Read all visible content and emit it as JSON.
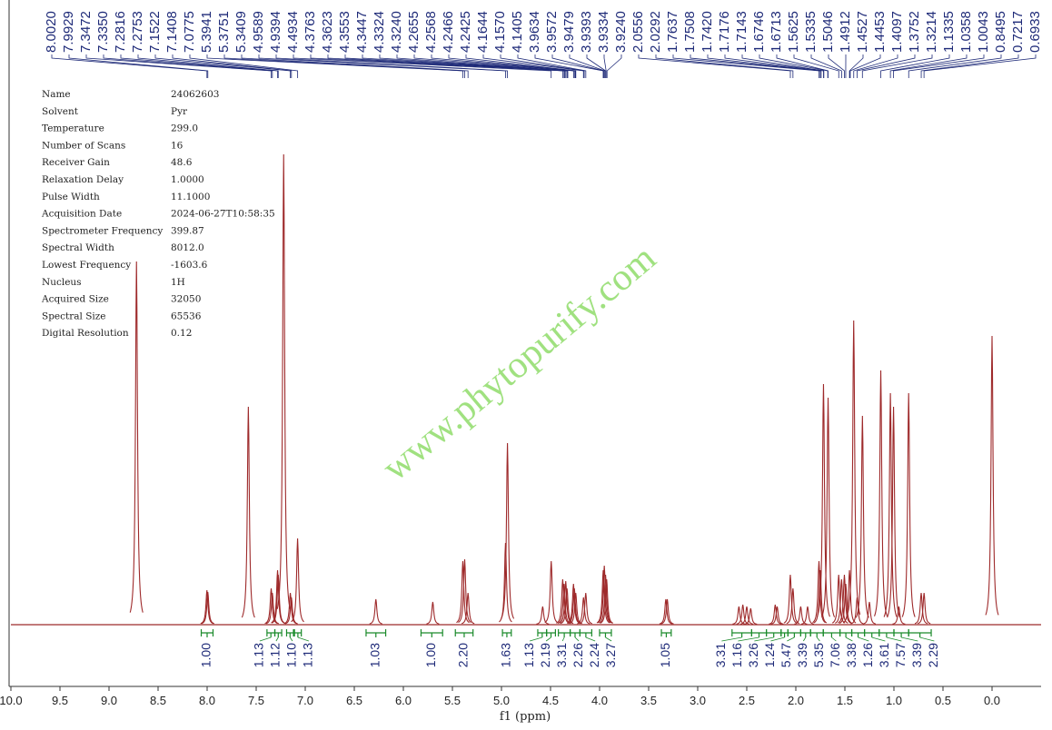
{
  "chart_data": {
    "type": "nmr",
    "xlabel": "f1 (ppm)",
    "xlim": [
      10.0,
      -0.5
    ],
    "ylim": [
      0,
      530
    ],
    "xticks": [
      {
        "value": 10.0,
        "label": "10.0"
      },
      {
        "value": 9.5,
        "label": "9.5"
      },
      {
        "value": 9.0,
        "label": "9.0"
      },
      {
        "value": 8.5,
        "label": "8.5"
      },
      {
        "value": 8.0,
        "label": "8.0"
      },
      {
        "value": 7.5,
        "label": "7.5"
      },
      {
        "value": 7.0,
        "label": "7.0"
      },
      {
        "value": 6.5,
        "label": "6.5"
      },
      {
        "value": 6.0,
        "label": "6.0"
      },
      {
        "value": 5.5,
        "label": "5.5"
      },
      {
        "value": 5.0,
        "label": "5.0"
      },
      {
        "value": 4.5,
        "label": "4.5"
      },
      {
        "value": 4.0,
        "label": "4.0"
      },
      {
        "value": 3.5,
        "label": "3.5"
      },
      {
        "value": 3.0,
        "label": "3.0"
      },
      {
        "value": 2.5,
        "label": "2.5"
      },
      {
        "value": 2.0,
        "label": "2.0"
      },
      {
        "value": 1.5,
        "label": "1.5"
      },
      {
        "value": 1.0,
        "label": "1.0"
      },
      {
        "value": 0.5,
        "label": "0.5"
      },
      {
        "value": 0.0,
        "label": "0.0"
      }
    ],
    "color": "#9e2a2b",
    "watermark": "www.phytopurify.com",
    "parameters": [
      [
        "Name",
        "24062603"
      ],
      [
        "Solvent",
        "Pyr"
      ],
      [
        "Temperature",
        "299.0"
      ],
      [
        "Number of Scans",
        "16"
      ],
      [
        "Receiver Gain",
        "48.6"
      ],
      [
        "Relaxation Delay",
        "1.0000"
      ],
      [
        "Pulse Width",
        "11.1000"
      ],
      [
        "Acquisition Date",
        "2024-06-27T10:58:35"
      ],
      [
        "Spectrometer Frequency",
        "399.87"
      ],
      [
        "Spectral Width",
        "8012.0"
      ],
      [
        "Lowest Frequency",
        "-1603.6"
      ],
      [
        "Nucleus",
        "1H"
      ],
      [
        "Acquired Size",
        "32050"
      ],
      [
        "Spectral Size",
        "65536"
      ],
      [
        "Digital Resolution",
        "0.12"
      ]
    ],
    "peak_labels": [
      {
        "value": 8.002,
        "label": "8.0020"
      },
      {
        "value": 7.9929,
        "label": "7.9929"
      },
      {
        "value": 7.3472,
        "label": "7.3472"
      },
      {
        "value": 7.335,
        "label": "7.3350"
      },
      {
        "value": 7.2816,
        "label": "7.2816"
      },
      {
        "value": 7.2753,
        "label": "7.2753"
      },
      {
        "value": 7.1522,
        "label": "7.1522"
      },
      {
        "value": 7.1408,
        "label": "7.1408"
      },
      {
        "value": 7.0775,
        "label": "7.0775"
      },
      {
        "value": 5.3941,
        "label": "5.3941"
      },
      {
        "value": 5.3751,
        "label": "5.3751"
      },
      {
        "value": 5.3409,
        "label": "5.3409"
      },
      {
        "value": 4.9589,
        "label": "4.9589"
      },
      {
        "value": 4.9394,
        "label": "4.9394"
      },
      {
        "value": 4.4934,
        "label": "4.4934"
      },
      {
        "value": 4.3763,
        "label": "4.3763"
      },
      {
        "value": 4.3623,
        "label": "4.3623"
      },
      {
        "value": 4.3553,
        "label": "4.3553"
      },
      {
        "value": 4.3447,
        "label": "4.3447"
      },
      {
        "value": 4.3324,
        "label": "4.3324"
      },
      {
        "value": 4.324,
        "label": "4.3240"
      },
      {
        "value": 4.2655,
        "label": "4.2655"
      },
      {
        "value": 4.2568,
        "label": "4.2568"
      },
      {
        "value": 4.2466,
        "label": "4.2466"
      },
      {
        "value": 4.2425,
        "label": "4.2425"
      },
      {
        "value": 4.1644,
        "label": "4.1644"
      },
      {
        "value": 4.157,
        "label": "4.1570"
      },
      {
        "value": 4.1405,
        "label": "4.1405"
      },
      {
        "value": 3.9634,
        "label": "3.9634"
      },
      {
        "value": 3.9572,
        "label": "3.9572"
      },
      {
        "value": 3.9479,
        "label": "3.9479"
      },
      {
        "value": 3.9393,
        "label": "3.9393"
      },
      {
        "value": 3.9334,
        "label": "3.9334"
      },
      {
        "value": 3.924,
        "label": "3.9240"
      },
      {
        "value": 2.0556,
        "label": "2.0556"
      },
      {
        "value": 2.0292,
        "label": "2.0292"
      },
      {
        "value": 1.7637,
        "label": "1.7637"
      },
      {
        "value": 1.7508,
        "label": "1.7508"
      },
      {
        "value": 1.742,
        "label": "1.7420"
      },
      {
        "value": 1.7176,
        "label": "1.7176"
      },
      {
        "value": 1.7143,
        "label": "1.7143"
      },
      {
        "value": 1.6746,
        "label": "1.6746"
      },
      {
        "value": 1.6713,
        "label": "1.6713"
      },
      {
        "value": 1.5625,
        "label": "1.5625"
      },
      {
        "value": 1.5335,
        "label": "1.5335"
      },
      {
        "value": 1.5046,
        "label": "1.5046"
      },
      {
        "value": 1.4912,
        "label": "1.4912"
      },
      {
        "value": 1.4527,
        "label": "1.4527"
      },
      {
        "value": 1.4453,
        "label": "1.4453"
      },
      {
        "value": 1.4097,
        "label": "1.4097"
      },
      {
        "value": 1.3752,
        "label": "1.3752"
      },
      {
        "value": 1.3214,
        "label": "1.3214"
      },
      {
        "value": 1.1335,
        "label": "1.1335"
      },
      {
        "value": 1.0358,
        "label": "1.0358"
      },
      {
        "value": 1.0043,
        "label": "1.0043"
      },
      {
        "value": 0.8495,
        "label": "0.8495"
      },
      {
        "value": 0.7217,
        "label": "0.7217"
      },
      {
        "value": 0.6933,
        "label": "0.6933"
      }
    ],
    "integrals": [
      {
        "value": 1.0,
        "label": "1.00",
        "range": [
          8.06,
          7.94
        ]
      },
      {
        "value": 1.13,
        "label": "1.13",
        "range": [
          7.39,
          7.31
        ]
      },
      {
        "value": 1.12,
        "label": "1.12",
        "range": [
          7.31,
          7.24
        ]
      },
      {
        "value": 1.1,
        "label": "1.10",
        "range": [
          7.19,
          7.12
        ]
      },
      {
        "value": 1.13,
        "label": "1.13",
        "range": [
          7.11,
          7.04
        ]
      },
      {
        "value": 1.03,
        "label": "1.03",
        "range": [
          6.38,
          6.18
        ]
      },
      {
        "value": 1.0,
        "label": "1.00",
        "range": [
          5.82,
          5.6
        ]
      },
      {
        "value": 2.2,
        "label": "2.20",
        "range": [
          5.47,
          5.29
        ]
      },
      {
        "value": 1.63,
        "label": "1.63",
        "range": [
          4.99,
          4.9
        ]
      },
      {
        "value": 1.13,
        "label": "1.13",
        "range": [
          4.63,
          4.54
        ]
      },
      {
        "value": 2.19,
        "label": "2.19",
        "range": [
          4.54,
          4.45
        ]
      },
      {
        "value": 3.31,
        "label": "3.31",
        "range": [
          4.42,
          4.3
        ]
      },
      {
        "value": 2.26,
        "label": "2.26",
        "range": [
          4.3,
          4.2
        ]
      },
      {
        "value": 2.24,
        "label": "2.24",
        "range": [
          4.2,
          4.08
        ]
      },
      {
        "value": 3.27,
        "label": "3.27",
        "range": [
          4.0,
          3.88
        ]
      },
      {
        "value": 1.05,
        "label": "1.05",
        "range": [
          3.37,
          3.27
        ]
      },
      {
        "value": 3.31,
        "label": "3.31",
        "range": [
          2.65,
          2.45
        ]
      },
      {
        "value": 1.16,
        "label": "1.16",
        "range": [
          2.45,
          2.3
        ]
      },
      {
        "value": 3.26,
        "label": "3.26",
        "range": [
          2.3,
          2.15
        ]
      },
      {
        "value": 1.24,
        "label": "1.24",
        "range": [
          2.15,
          2.08
        ]
      },
      {
        "value": 5.47,
        "label": "5.47",
        "range": [
          2.08,
          1.95
        ]
      },
      {
        "value": 3.39,
        "label": "3.39",
        "range": [
          1.95,
          1.85
        ]
      },
      {
        "value": 5.35,
        "label": "5.35",
        "range": [
          1.85,
          1.72
        ]
      },
      {
        "value": 7.06,
        "label": "7.06",
        "range": [
          1.72,
          1.55
        ]
      },
      {
        "value": 3.38,
        "label": "3.38",
        "range": [
          1.55,
          1.43
        ]
      },
      {
        "value": 1.26,
        "label": "1.26",
        "range": [
          1.43,
          1.3
        ]
      },
      {
        "value": 3.61,
        "label": "3.61",
        "range": [
          1.3,
          1.15
        ]
      },
      {
        "value": 7.57,
        "label": "7.57",
        "range": [
          1.15,
          1.0
        ]
      },
      {
        "value": 3.39,
        "label": "3.39",
        "range": [
          1.0,
          0.85
        ]
      },
      {
        "value": 2.29,
        "label": "2.29",
        "range": [
          0.85,
          0.62
        ]
      }
    ],
    "peaks": {
      "ppm": [
        8.72,
        8.002,
        7.993,
        7.58,
        7.347,
        7.335,
        7.282,
        7.275,
        7.22,
        7.152,
        7.141,
        7.078,
        6.28,
        5.7,
        5.394,
        5.375,
        5.341,
        4.959,
        4.939,
        4.58,
        4.493,
        4.376,
        4.362,
        4.345,
        4.332,
        4.266,
        4.257,
        4.243,
        4.164,
        4.141,
        3.963,
        3.952,
        3.939,
        3.928,
        3.325,
        3.31,
        2.58,
        2.54,
        2.5,
        2.46,
        2.21,
        2.19,
        2.056,
        2.029,
        1.95,
        1.88,
        1.764,
        1.751,
        1.718,
        1.671,
        1.563,
        1.534,
        1.505,
        1.491,
        1.453,
        1.41,
        1.375,
        1.321,
        1.25,
        1.134,
        1.036,
        1.004,
        0.95,
        0.85,
        0.722,
        0.693,
        0.0
      ],
      "height": [
        400,
        38,
        36,
        240,
        40,
        35,
        60,
        55,
        518,
        35,
        30,
        95,
        28,
        25,
        70,
        72,
        35,
        90,
        200,
        20,
        70,
        50,
        45,
        48,
        40,
        45,
        40,
        35,
        30,
        35,
        60,
        65,
        55,
        50,
        28,
        28,
        20,
        22,
        20,
        18,
        22,
        20,
        55,
        40,
        20,
        20,
        70,
        60,
        265,
        250,
        55,
        50,
        55,
        45,
        60,
        335,
        30,
        230,
        25,
        280,
        255,
        240,
        20,
        255,
        35,
        35,
        318
      ]
    }
  }
}
